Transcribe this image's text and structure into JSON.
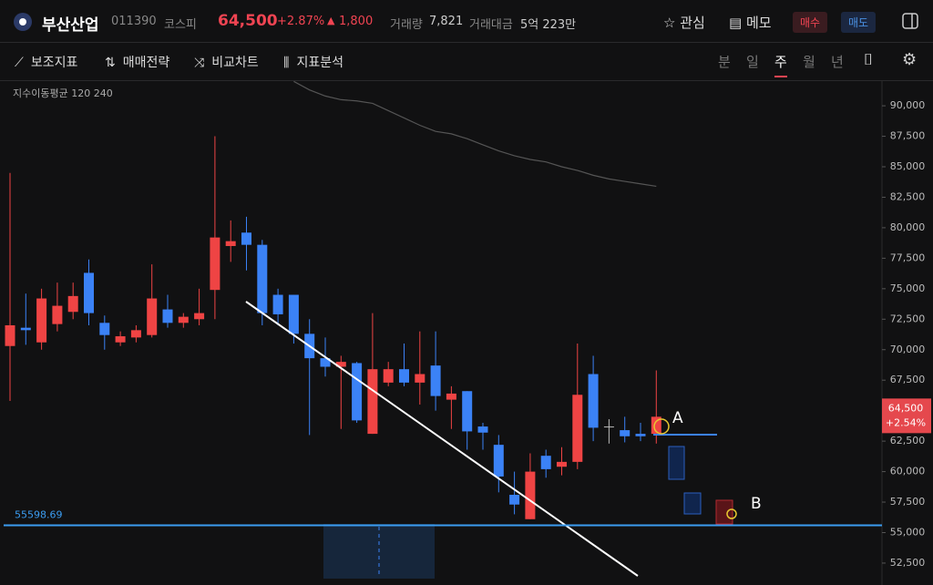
{
  "header": {
    "name": "부산산업",
    "code": "011390",
    "market": "코스피",
    "price": "64,500",
    "change_pct": "+2.87%",
    "change": "1,800",
    "volume_label": "거래량",
    "volume": "7,821",
    "amount_label": "거래대금",
    "amount": "5억 223만",
    "watch": "관심",
    "memo": "메모",
    "buy": "매수",
    "sell": "매도"
  },
  "toolbar": {
    "tools": [
      "보조지표",
      "매매전략",
      "비교차트",
      "지표분석"
    ],
    "periods": [
      "분",
      "일",
      "주",
      "월",
      "년"
    ],
    "active_period": "주"
  },
  "chart_data": {
    "type": "candlestick",
    "indicator_label": "지수이동평균 120 240",
    "open": [
      70300,
      71800,
      70600,
      72100,
      73100,
      76300,
      72200,
      70600,
      71000,
      71200,
      73300,
      72200,
      72500,
      74900,
      78500,
      79600,
      78600,
      74500,
      74500,
      71300,
      69300,
      68600,
      68900,
      63100,
      67300,
      68400,
      67300,
      68700,
      65900,
      66600,
      63700,
      62200,
      58100,
      56100,
      61300,
      60400,
      60800,
      68000,
      63700,
      63400,
      63100,
      63100
    ],
    "high": [
      84500,
      74600,
      75000,
      75500,
      75500,
      77400,
      72800,
      71500,
      72000,
      77000,
      74500,
      73000,
      75000,
      87500,
      80600,
      80900,
      79000,
      75000,
      74500,
      72500,
      71000,
      69500,
      69000,
      73000,
      69000,
      70500,
      71500,
      71500,
      67000,
      66600,
      64000,
      63000,
      60000,
      61500,
      61800,
      62000,
      70500,
      69500,
      64300,
      64500,
      64000,
      68300
    ],
    "low": [
      65800,
      70400,
      70000,
      71500,
      72500,
      72000,
      70000,
      70300,
      70600,
      71000,
      71800,
      71800,
      72000,
      72500,
      77200,
      76500,
      72000,
      72000,
      70500,
      63000,
      67800,
      63500,
      64000,
      63100,
      67000,
      67000,
      65500,
      65000,
      63500,
      61800,
      61800,
      58300,
      56500,
      56100,
      59500,
      59700,
      60200,
      62500,
      62300,
      62400,
      62500,
      62300
    ],
    "close": [
      72000,
      71600,
      74200,
      73600,
      74400,
      73000,
      71200,
      71100,
      71600,
      74200,
      72200,
      72700,
      73000,
      79200,
      78900,
      78600,
      73000,
      72900,
      71300,
      69300,
      68600,
      69000,
      64200,
      68400,
      68400,
      67300,
      68000,
      66200,
      66400,
      63300,
      63200,
      59600,
      57300,
      60000,
      60200,
      60800,
      66300,
      63600,
      63700,
      62900,
      62900,
      64500
    ],
    "ma": [
      null,
      null,
      null,
      null,
      null,
      null,
      null,
      null,
      null,
      null,
      null,
      null,
      null,
      null,
      null,
      null,
      null,
      null,
      92000,
      91300,
      90800,
      90500,
      90400,
      90200,
      89600,
      89000,
      88400,
      87900,
      87700,
      87300,
      86800,
      86300,
      85900,
      85600,
      85400,
      85000,
      84700,
      84300,
      84000,
      83800,
      83600,
      83400
    ],
    "up_color": "#ef4444",
    "down_color": "#3b82f6",
    "ma_color": "#555555",
    "ylim": [
      51450,
      91950
    ],
    "yticks": [
      {
        "value": 52500,
        "label": "52,500"
      },
      {
        "value": 55000,
        "label": "55,000"
      },
      {
        "value": 57500,
        "label": "57,500"
      },
      {
        "value": 60000,
        "label": "60,000"
      },
      {
        "value": 62500,
        "label": "62,500"
      },
      {
        "value": 65000,
        "label": "65,000"
      },
      {
        "value": 67500,
        "label": "67,500"
      },
      {
        "value": 70000,
        "label": "70,000"
      },
      {
        "value": 72500,
        "label": "72,500"
      },
      {
        "value": 75000,
        "label": "75,000"
      },
      {
        "value": 77500,
        "label": "77,500"
      },
      {
        "value": 80000,
        "label": "80,000"
      },
      {
        "value": 82500,
        "label": "82,500"
      },
      {
        "value": 85000,
        "label": "85,000"
      },
      {
        "value": 87500,
        "label": "87,500"
      },
      {
        "value": 90000,
        "label": "90,000"
      }
    ],
    "hline": 55598.69,
    "last_price": {
      "value": 64500,
      "label": "64,500",
      "change": "+2.54%"
    },
    "annotations": [
      "A",
      "B"
    ]
  }
}
